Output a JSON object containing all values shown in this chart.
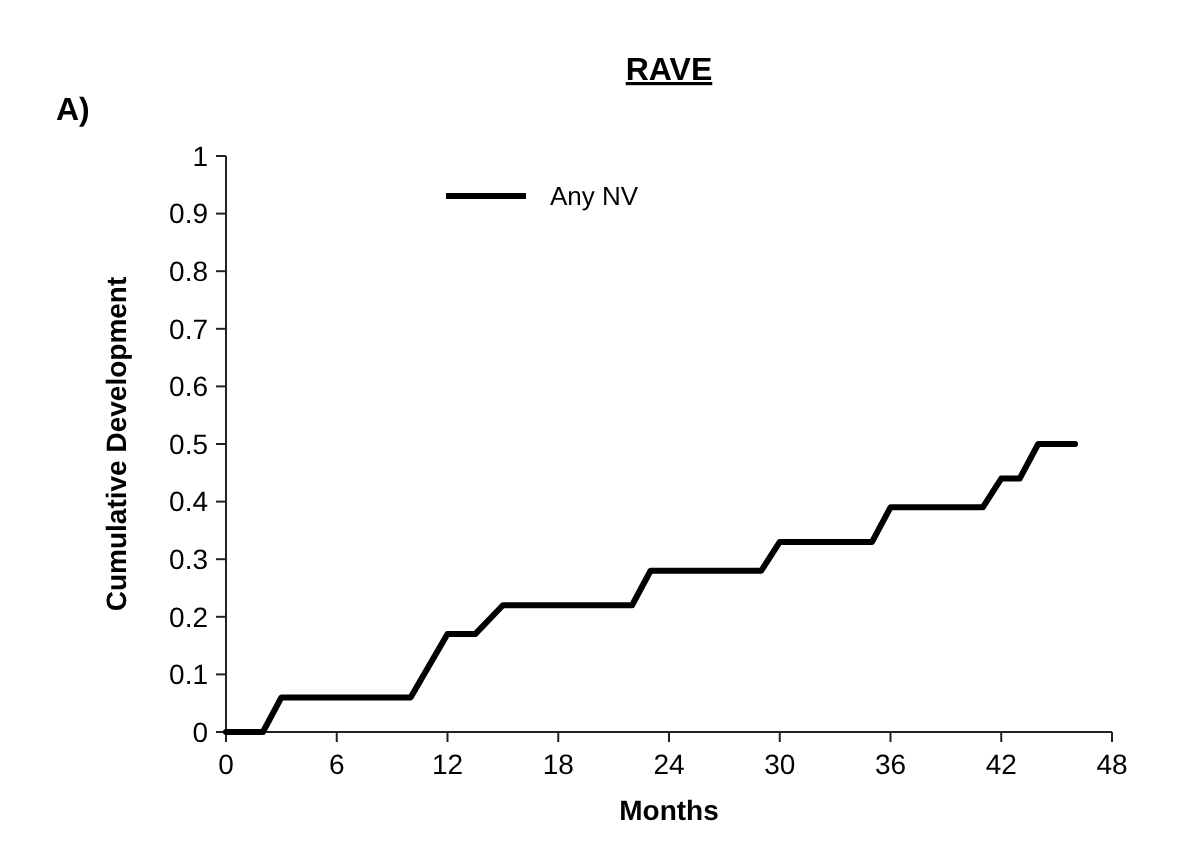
{
  "chart_data": {
    "type": "line",
    "title": "RAVE",
    "xlabel": "Months",
    "ylabel": "Cumulative Development",
    "annotations": [
      "A)"
    ],
    "x": [
      0,
      2,
      3,
      10,
      12,
      13.5,
      15,
      22,
      23,
      29,
      30,
      35,
      36,
      41,
      42,
      43,
      44,
      46
    ],
    "series": [
      {
        "name": "Any NV",
        "color": "#000000",
        "values": [
          0,
          0,
          0.06,
          0.06,
          0.17,
          0.17,
          0.22,
          0.22,
          0.28,
          0.28,
          0.33,
          0.33,
          0.39,
          0.39,
          0.44,
          0.44,
          0.5,
          0.5
        ]
      }
    ],
    "xlim": [
      0,
      48
    ],
    "xticks": [
      0,
      6,
      12,
      18,
      24,
      30,
      36,
      42,
      48
    ],
    "ylim": [
      0,
      1
    ],
    "yticks": [
      0,
      0.1,
      0.2,
      0.3,
      0.4,
      0.5,
      0.6,
      0.7,
      0.8,
      0.9,
      1
    ],
    "grid": false,
    "legend": "top left",
    "marker": "none",
    "line_style": "solid"
  }
}
